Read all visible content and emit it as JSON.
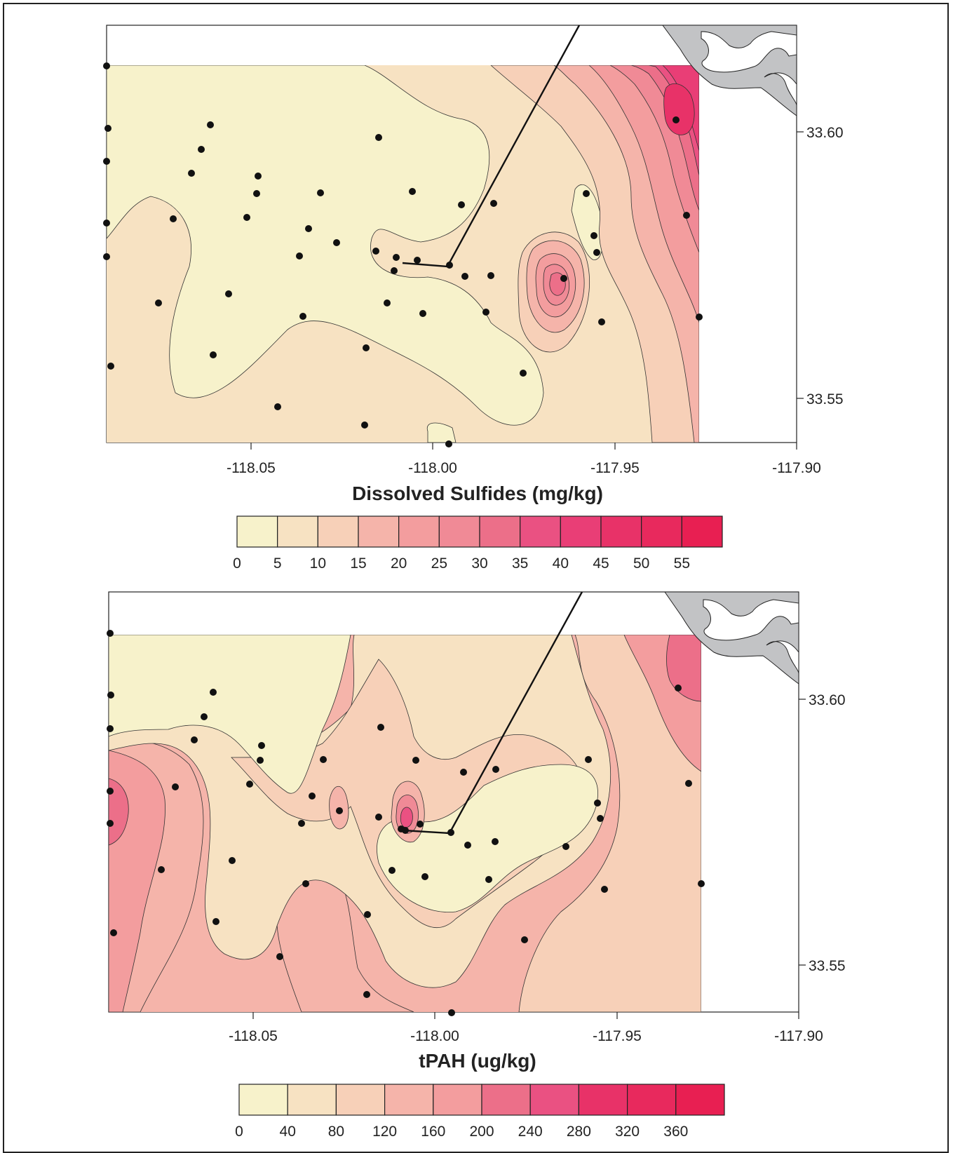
{
  "maps": [
    {
      "id": "sulfides",
      "title": "Dissolved Sulfides (mg/kg)",
      "x_ticks": [
        "-118.05",
        "-118.00",
        "-117.95",
        "-117.90"
      ],
      "y_ticks": [
        "33.60",
        "33.55"
      ],
      "legend": {
        "labels": [
          "0",
          "5",
          "10",
          "15",
          "20",
          "25",
          "30",
          "35",
          "40",
          "45",
          "50",
          "55"
        ],
        "colors": [
          "#f7f2cb",
          "#f7e2c2",
          "#f7d0b8",
          "#f5b4aa",
          "#f39d9e",
          "#f08a96",
          "#ec6f89",
          "#ea5182",
          "#e93e76",
          "#e83268",
          "#e8295d",
          "#e81f52"
        ]
      }
    },
    {
      "id": "tpah",
      "title": "tPAH (ug/kg)",
      "x_ticks": [
        "-118.05",
        "-118.00",
        "-117.95",
        "-117.90"
      ],
      "y_ticks": [
        "33.60",
        "33.55"
      ],
      "legend": {
        "labels": [
          "0",
          "40",
          "80",
          "120",
          "160",
          "200",
          "240",
          "280",
          "320",
          "360"
        ],
        "colors": [
          "#f7f2cb",
          "#f7e2c2",
          "#f7d0b8",
          "#f5b4aa",
          "#f39d9e",
          "#ec6f89",
          "#ea5182",
          "#e83268",
          "#e8295d",
          "#e81f52"
        ]
      }
    }
  ],
  "colors": {
    "land": "#c2c3c5",
    "station": "#111111",
    "frame": "#222222"
  }
}
